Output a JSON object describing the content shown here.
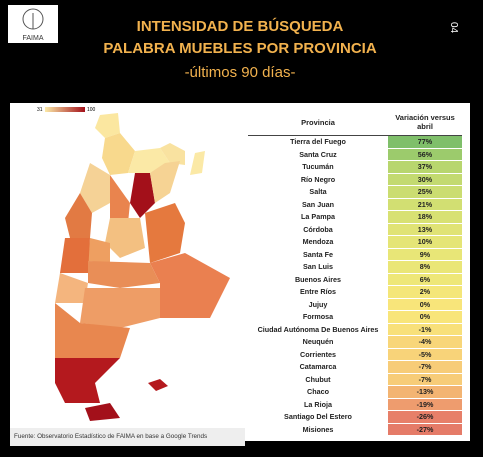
{
  "header": {
    "logo": "FAIMA",
    "title_lines": [
      "INTENSIDAD DE BÚSQUEDA",
      "PALABRA MUEBLES POR PROVINCIA",
      "-últimos 90 días-"
    ],
    "page_number": "04"
  },
  "map": {
    "legend_min": "31",
    "legend_max": "100"
  },
  "table": {
    "headers": [
      "Provincia",
      "Variación versus abril"
    ],
    "rows": [
      {
        "name": "Tierra del Fuego",
        "value": "77%",
        "color": "#7fbf6a"
      },
      {
        "name": "Santa Cruz",
        "value": "56%",
        "color": "#9ccb6c"
      },
      {
        "name": "Tucumán",
        "value": "37%",
        "color": "#b8d66e"
      },
      {
        "name": "Río Negro",
        "value": "30%",
        "color": "#c3da70"
      },
      {
        "name": "Salta",
        "value": "25%",
        "color": "#cbdd71"
      },
      {
        "name": "San Juan",
        "value": "21%",
        "color": "#d2df72"
      },
      {
        "name": "La Pampa",
        "value": "18%",
        "color": "#d8e173"
      },
      {
        "name": "Córdoba",
        "value": "13%",
        "color": "#e0e375"
      },
      {
        "name": "Mendoza",
        "value": "10%",
        "color": "#e5e576"
      },
      {
        "name": "Santa Fe",
        "value": "9%",
        "color": "#e8e677"
      },
      {
        "name": "San Luis",
        "value": "8%",
        "color": "#eae677"
      },
      {
        "name": "Buenos Aires",
        "value": "6%",
        "color": "#eee778"
      },
      {
        "name": "Entre Ríos",
        "value": "2%",
        "color": "#f4e679"
      },
      {
        "name": "Jujuy",
        "value": "0%",
        "color": "#f8e57a"
      },
      {
        "name": "Formosa",
        "value": "0%",
        "color": "#f8e57a"
      },
      {
        "name": "Ciudad Autónoma De Buenos Aires",
        "value": "-1%",
        "color": "#f8e07a"
      },
      {
        "name": "Neuquén",
        "value": "-4%",
        "color": "#f8d679"
      },
      {
        "name": "Corrientes",
        "value": "-5%",
        "color": "#f8d379"
      },
      {
        "name": "Catamarca",
        "value": "-7%",
        "color": "#f7cc78"
      },
      {
        "name": "Chubut",
        "value": "-7%",
        "color": "#f7cc78"
      },
      {
        "name": "Chaco",
        "value": "-13%",
        "color": "#f3b472"
      },
      {
        "name": "La Rioja",
        "value": "-19%",
        "color": "#ee9c6e"
      },
      {
        "name": "Santiago Del Estero",
        "value": "-26%",
        "color": "#e77f69"
      },
      {
        "name": "Misiones",
        "value": "-27%",
        "color": "#e57b68"
      }
    ]
  },
  "footer": {
    "source": "Fuente: Observatorio Estadístico de FAIMA en base a Google Trends"
  }
}
